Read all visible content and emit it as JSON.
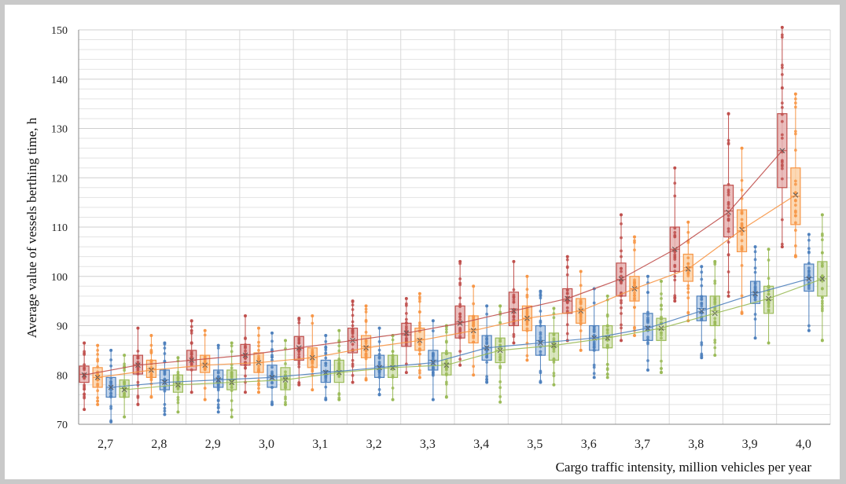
{
  "chart_data": {
    "type": "box",
    "title": "",
    "xlabel": "Cargo traffic intensity, million vehicles per year",
    "ylabel": "Average value of vessels berthing time, h",
    "ylim": [
      70,
      150
    ],
    "yticks": [
      70,
      80,
      90,
      100,
      110,
      120,
      130,
      140,
      150
    ],
    "grid": true,
    "legend": "none",
    "categories": [
      "2,7",
      "2,8",
      "2,9",
      "3,0",
      "3,1",
      "3,2",
      "3,3",
      "3,4",
      "3,5",
      "3,6",
      "3,7",
      "3,8",
      "3,9",
      "4,0"
    ],
    "series": [
      {
        "color": "#c0504d",
        "fill": "#e6b3b1",
        "mean": [
          80.0,
          82.0,
          83.0,
          84.0,
          85.5,
          87.0,
          88.5,
          90.5,
          93.0,
          95.5,
          99.5,
          105.5,
          113.0,
          125.5
        ],
        "q1": [
          78.5,
          80.2,
          81.0,
          82.0,
          83.0,
          84.5,
          85.8,
          87.5,
          90.0,
          92.5,
          96.0,
          101.0,
          108.0,
          118.0
        ],
        "q3": [
          81.8,
          84.0,
          85.0,
          86.2,
          87.8,
          89.5,
          90.5,
          94.0,
          96.8,
          97.5,
          102.7,
          110.0,
          118.5,
          133.0
        ],
        "min": [
          73.0,
          74.0,
          76.5,
          76.5,
          78.0,
          78.5,
          80.5,
          82.0,
          86.5,
          87.0,
          87.0,
          95.0,
          96.0,
          106.0
        ],
        "max": [
          86.5,
          89.5,
          91.0,
          92.0,
          91.5,
          95.0,
          95.5,
          103.0,
          103.0,
          104.0,
          112.5,
          122.0,
          133.0,
          150.5
        ]
      },
      {
        "color": "#f79646",
        "fill": "#fbd2a8",
        "mean": [
          79.5,
          81.0,
          82.0,
          82.5,
          83.5,
          85.5,
          87.0,
          89.0,
          91.5,
          93.0,
          97.5,
          101.5,
          109.5,
          116.5
        ],
        "q1": [
          77.5,
          79.5,
          80.5,
          80.5,
          81.5,
          83.5,
          85.0,
          86.5,
          89.0,
          90.5,
          95.0,
          99.0,
          105.0,
          110.5
        ],
        "q3": [
          81.5,
          83.0,
          84.0,
          84.5,
          85.5,
          88.0,
          89.5,
          92.0,
          94.0,
          95.5,
          100.0,
          104.5,
          113.5,
          122.0
        ],
        "min": [
          74.0,
          75.5,
          75.0,
          76.5,
          77.0,
          79.0,
          79.5,
          80.0,
          83.0,
          85.0,
          88.0,
          91.0,
          92.5,
          104.0
        ],
        "max": [
          86.0,
          88.0,
          89.0,
          89.5,
          92.0,
          94.0,
          96.5,
          98.0,
          100.0,
          101.0,
          108.0,
          111.0,
          126.0,
          137.0
        ]
      },
      {
        "color": "#4f81bd",
        "fill": "#b4cbe6",
        "mean": [
          77.5,
          78.5,
          79.0,
          79.5,
          80.5,
          81.5,
          82.5,
          85.5,
          86.5,
          87.5,
          89.5,
          93.0,
          96.5,
          99.5
        ],
        "q1": [
          75.5,
          77.0,
          77.5,
          77.5,
          78.5,
          79.5,
          81.0,
          83.0,
          84.0,
          85.0,
          87.0,
          91.0,
          94.5,
          97.0
        ],
        "q3": [
          79.5,
          81.0,
          81.0,
          82.0,
          83.0,
          84.0,
          85.0,
          88.0,
          90.0,
          90.0,
          92.5,
          96.0,
          99.0,
          102.5
        ],
        "min": [
          70.5,
          72.0,
          72.5,
          74.0,
          75.0,
          76.0,
          75.0,
          78.5,
          78.5,
          79.5,
          81.0,
          83.5,
          87.5,
          89.0
        ],
        "max": [
          85.0,
          86.5,
          86.0,
          88.5,
          88.0,
          89.5,
          91.0,
          94.0,
          97.0,
          97.5,
          100.0,
          102.0,
          106.0,
          108.5
        ]
      },
      {
        "color": "#9bbb59",
        "fill": "#d3e2b4",
        "mean": [
          77.0,
          78.0,
          78.5,
          79.0,
          80.5,
          81.5,
          82.0,
          85.0,
          86.0,
          87.5,
          89.5,
          92.5,
          95.5,
          99.5
        ],
        "q1": [
          75.5,
          76.5,
          77.0,
          77.0,
          78.5,
          79.5,
          80.0,
          82.5,
          83.0,
          85.5,
          87.0,
          90.0,
          92.5,
          96.0
        ],
        "q3": [
          79.0,
          80.0,
          81.0,
          81.5,
          83.0,
          84.0,
          84.5,
          87.5,
          88.5,
          90.0,
          91.5,
          96.0,
          98.0,
          103.0
        ],
        "min": [
          71.5,
          72.5,
          71.5,
          74.0,
          75.0,
          75.0,
          75.5,
          74.5,
          78.0,
          79.5,
          80.5,
          84.0,
          86.5,
          87.0
        ],
        "max": [
          84.0,
          83.5,
          86.5,
          87.0,
          89.0,
          88.0,
          90.0,
          94.0,
          93.5,
          96.0,
          99.0,
          103.0,
          105.5,
          112.5
        ]
      }
    ]
  }
}
